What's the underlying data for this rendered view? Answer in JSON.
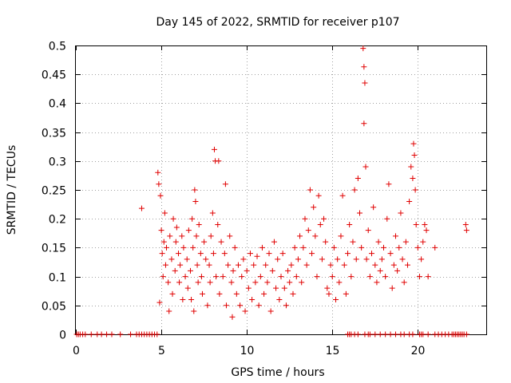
{
  "chart_data": {
    "type": "scatter",
    "title": "Day 145 of 2022, SRMTID for receiver p107",
    "xlabel": "GPS time / hours",
    "ylabel": "SRMTID / TECUs",
    "xlim": [
      0,
      24
    ],
    "ylim": [
      0,
      0.5
    ],
    "xticks": [
      0,
      5,
      10,
      15,
      20
    ],
    "yticks": [
      0,
      0.05,
      0.1,
      0.15,
      0.2,
      0.25,
      0.3,
      0.35,
      0.4,
      0.45,
      0.5
    ],
    "xtick_labels": [
      "0",
      "5",
      "10",
      "15",
      "20"
    ],
    "ytick_labels": [
      "0",
      "0.05",
      "0.1",
      "0.15",
      "0.2",
      "0.25",
      "0.3",
      "0.35",
      "0.4",
      "0.45",
      "0.5"
    ],
    "grid": true,
    "marker": "+",
    "color": "#e00000",
    "series": [
      {
        "name": "SRMTID",
        "points": [
          [
            0.05,
            0
          ],
          [
            0.15,
            0
          ],
          [
            0.25,
            0
          ],
          [
            0.4,
            0
          ],
          [
            0.55,
            0
          ],
          [
            0.9,
            0
          ],
          [
            1.25,
            0
          ],
          [
            1.5,
            0
          ],
          [
            1.8,
            0
          ],
          [
            2.1,
            0
          ],
          [
            2.6,
            0
          ],
          [
            3.2,
            0
          ],
          [
            3.55,
            0
          ],
          [
            3.7,
            0
          ],
          [
            3.85,
            0
          ],
          [
            4.0,
            0
          ],
          [
            4.15,
            0
          ],
          [
            4.3,
            0
          ],
          [
            4.45,
            0
          ],
          [
            4.6,
            0
          ],
          [
            4.75,
            0
          ],
          [
            3.85,
            0.218
          ],
          [
            4.8,
            0.28
          ],
          [
            4.85,
            0.26
          ],
          [
            4.9,
            0.055
          ],
          [
            4.95,
            0.24
          ],
          [
            5.0,
            0.18
          ],
          [
            5.05,
            0.14
          ],
          [
            5.1,
            0.1
          ],
          [
            5.15,
            0.16
          ],
          [
            5.2,
            0.21
          ],
          [
            5.25,
            0.12
          ],
          [
            5.3,
            0.15
          ],
          [
            5.4,
            0.09
          ],
          [
            5.45,
            0.04
          ],
          [
            5.5,
            0.17
          ],
          [
            5.6,
            0.13
          ],
          [
            5.65,
            0.07
          ],
          [
            5.7,
            0.2
          ],
          [
            5.8,
            0.11
          ],
          [
            5.85,
            0.16
          ],
          [
            5.9,
            0.185
          ],
          [
            6.0,
            0.14
          ],
          [
            6.05,
            0.09
          ],
          [
            6.1,
            0.12
          ],
          [
            6.2,
            0.17
          ],
          [
            6.25,
            0.06
          ],
          [
            6.3,
            0.15
          ],
          [
            6.4,
            0.1
          ],
          [
            6.5,
            0.13
          ],
          [
            6.55,
            0.08
          ],
          [
            6.6,
            0.18
          ],
          [
            6.7,
            0.11
          ],
          [
            6.75,
            0.06
          ],
          [
            6.8,
            0.2
          ],
          [
            6.85,
            0.15
          ],
          [
            6.9,
            0.04
          ],
          [
            6.95,
            0.25
          ],
          [
            7.0,
            0.23
          ],
          [
            7.05,
            0.17
          ],
          [
            7.1,
            0.12
          ],
          [
            7.15,
            0.09
          ],
          [
            7.2,
            0.19
          ],
          [
            7.3,
            0.14
          ],
          [
            7.35,
            0.1
          ],
          [
            7.4,
            0.07
          ],
          [
            7.5,
            0.16
          ],
          [
            7.6,
            0.13
          ],
          [
            7.7,
            0.05
          ],
          [
            7.8,
            0.12
          ],
          [
            7.85,
            0.09
          ],
          [
            7.9,
            0.17
          ],
          [
            8.0,
            0.21
          ],
          [
            8.05,
            0.14
          ],
          [
            8.1,
            0.32
          ],
          [
            8.15,
            0.3
          ],
          [
            8.2,
            0.1
          ],
          [
            8.3,
            0.19
          ],
          [
            8.35,
            0.3
          ],
          [
            8.4,
            0.07
          ],
          [
            8.5,
            0.16
          ],
          [
            8.6,
            0.1
          ],
          [
            8.7,
            0.14
          ],
          [
            8.75,
            0.26
          ],
          [
            8.8,
            0.05
          ],
          [
            8.9,
            0.12
          ],
          [
            9.0,
            0.17
          ],
          [
            9.1,
            0.09
          ],
          [
            9.15,
            0.03
          ],
          [
            9.2,
            0.11
          ],
          [
            9.3,
            0.15
          ],
          [
            9.4,
            0.07
          ],
          [
            9.5,
            0.12
          ],
          [
            9.6,
            0.05
          ],
          [
            9.7,
            0.1
          ],
          [
            9.8,
            0.13
          ],
          [
            9.9,
            0.04
          ],
          [
            10.0,
            0.11
          ],
          [
            10.1,
            0.08
          ],
          [
            10.2,
            0.14
          ],
          [
            10.3,
            0.06
          ],
          [
            10.4,
            0.12
          ],
          [
            10.5,
            0.09
          ],
          [
            10.6,
            0.135
          ],
          [
            10.7,
            0.05
          ],
          [
            10.8,
            0.1
          ],
          [
            10.9,
            0.15
          ],
          [
            11.0,
            0.07
          ],
          [
            11.1,
            0.12
          ],
          [
            11.2,
            0.09
          ],
          [
            11.3,
            0.14
          ],
          [
            11.4,
            0.04
          ],
          [
            11.5,
            0.11
          ],
          [
            11.6,
            0.16
          ],
          [
            11.7,
            0.08
          ],
          [
            11.8,
            0.13
          ],
          [
            11.9,
            0.06
          ],
          [
            12.0,
            0.1
          ],
          [
            12.1,
            0.14
          ],
          [
            12.2,
            0.08
          ],
          [
            12.3,
            0.05
          ],
          [
            12.4,
            0.11
          ],
          [
            12.5,
            0.09
          ],
          [
            12.6,
            0.12
          ],
          [
            12.7,
            0.07
          ],
          [
            12.8,
            0.15
          ],
          [
            12.9,
            0.1
          ],
          [
            13.0,
            0.13
          ],
          [
            13.1,
            0.17
          ],
          [
            13.2,
            0.09
          ],
          [
            13.3,
            0.15
          ],
          [
            13.4,
            0.2
          ],
          [
            13.5,
            0.12
          ],
          [
            13.6,
            0.18
          ],
          [
            13.7,
            0.25
          ],
          [
            13.8,
            0.14
          ],
          [
            13.9,
            0.22
          ],
          [
            14.0,
            0.17
          ],
          [
            14.1,
            0.1
          ],
          [
            14.2,
            0.24
          ],
          [
            14.3,
            0.19
          ],
          [
            14.4,
            0.13
          ],
          [
            14.5,
            0.2
          ],
          [
            14.6,
            0.16
          ],
          [
            14.7,
            0.08
          ],
          [
            14.8,
            0.07
          ],
          [
            14.9,
            0.12
          ],
          [
            15.0,
            0.1
          ],
          [
            15.1,
            0.15
          ],
          [
            15.2,
            0.06
          ],
          [
            15.3,
            0.13
          ],
          [
            15.4,
            0.09
          ],
          [
            15.5,
            0.17
          ],
          [
            15.6,
            0.24
          ],
          [
            15.7,
            0.12
          ],
          [
            15.8,
            0.07
          ],
          [
            15.9,
            0.14
          ],
          [
            16.0,
            0.19
          ],
          [
            16.1,
            0.1
          ],
          [
            16.2,
            0.16
          ],
          [
            16.3,
            0.25
          ],
          [
            16.4,
            0.13
          ],
          [
            16.5,
            0.27
          ],
          [
            16.6,
            0.21
          ],
          [
            16.7,
            0.15
          ],
          [
            16.8,
            0.495
          ],
          [
            16.85,
            0.463
          ],
          [
            16.9,
            0.435
          ],
          [
            16.85,
            0.365
          ],
          [
            16.95,
            0.29
          ],
          [
            17.0,
            0.13
          ],
          [
            17.1,
            0.18
          ],
          [
            17.2,
            0.1
          ],
          [
            17.3,
            0.14
          ],
          [
            17.4,
            0.22
          ],
          [
            17.5,
            0.12
          ],
          [
            17.6,
            0.09
          ],
          [
            17.7,
            0.16
          ],
          [
            17.8,
            0.11
          ],
          [
            17.9,
            0.13
          ],
          [
            18.0,
            0.15
          ],
          [
            18.1,
            0.1
          ],
          [
            18.2,
            0.2
          ],
          [
            18.3,
            0.26
          ],
          [
            18.4,
            0.14
          ],
          [
            18.5,
            0.08
          ],
          [
            18.6,
            0.12
          ],
          [
            18.7,
            0.17
          ],
          [
            18.8,
            0.11
          ],
          [
            18.9,
            0.15
          ],
          [
            19.0,
            0.21
          ],
          [
            19.1,
            0.13
          ],
          [
            19.2,
            0.09
          ],
          [
            19.3,
            0.16
          ],
          [
            19.4,
            0.12
          ],
          [
            19.5,
            0.23
          ],
          [
            19.6,
            0.29
          ],
          [
            19.7,
            0.27
          ],
          [
            19.75,
            0.33
          ],
          [
            19.8,
            0.31
          ],
          [
            19.85,
            0.25
          ],
          [
            19.9,
            0.19
          ],
          [
            20.0,
            0.15
          ],
          [
            20.1,
            0.1
          ],
          [
            20.2,
            0.13
          ],
          [
            20.3,
            0.16
          ],
          [
            20.4,
            0.19
          ],
          [
            20.5,
            0.18
          ],
          [
            20.6,
            0.1
          ],
          [
            21.0,
            0.15
          ],
          [
            22.8,
            0.19
          ],
          [
            22.85,
            0.18
          ],
          [
            15.9,
            0
          ],
          [
            16.0,
            0
          ],
          [
            16.1,
            0
          ],
          [
            16.3,
            0
          ],
          [
            16.5,
            0
          ],
          [
            16.9,
            0
          ],
          [
            17.1,
            0
          ],
          [
            17.2,
            0
          ],
          [
            17.5,
            0
          ],
          [
            17.8,
            0
          ],
          [
            18.1,
            0
          ],
          [
            18.4,
            0
          ],
          [
            18.7,
            0
          ],
          [
            19.0,
            0
          ],
          [
            19.2,
            0
          ],
          [
            19.5,
            0
          ],
          [
            19.7,
            0
          ],
          [
            20.1,
            0
          ],
          [
            20.2,
            0
          ],
          [
            20.3,
            0
          ],
          [
            20.6,
            0
          ],
          [
            21.0,
            0
          ],
          [
            21.2,
            0
          ],
          [
            21.4,
            0
          ],
          [
            21.6,
            0
          ],
          [
            21.8,
            0
          ],
          [
            22.0,
            0
          ],
          [
            22.1,
            0
          ],
          [
            22.2,
            0
          ],
          [
            22.3,
            0
          ],
          [
            22.4,
            0
          ],
          [
            22.5,
            0
          ],
          [
            22.6,
            0
          ],
          [
            22.7,
            0
          ],
          [
            22.85,
            0
          ]
        ]
      }
    ]
  }
}
